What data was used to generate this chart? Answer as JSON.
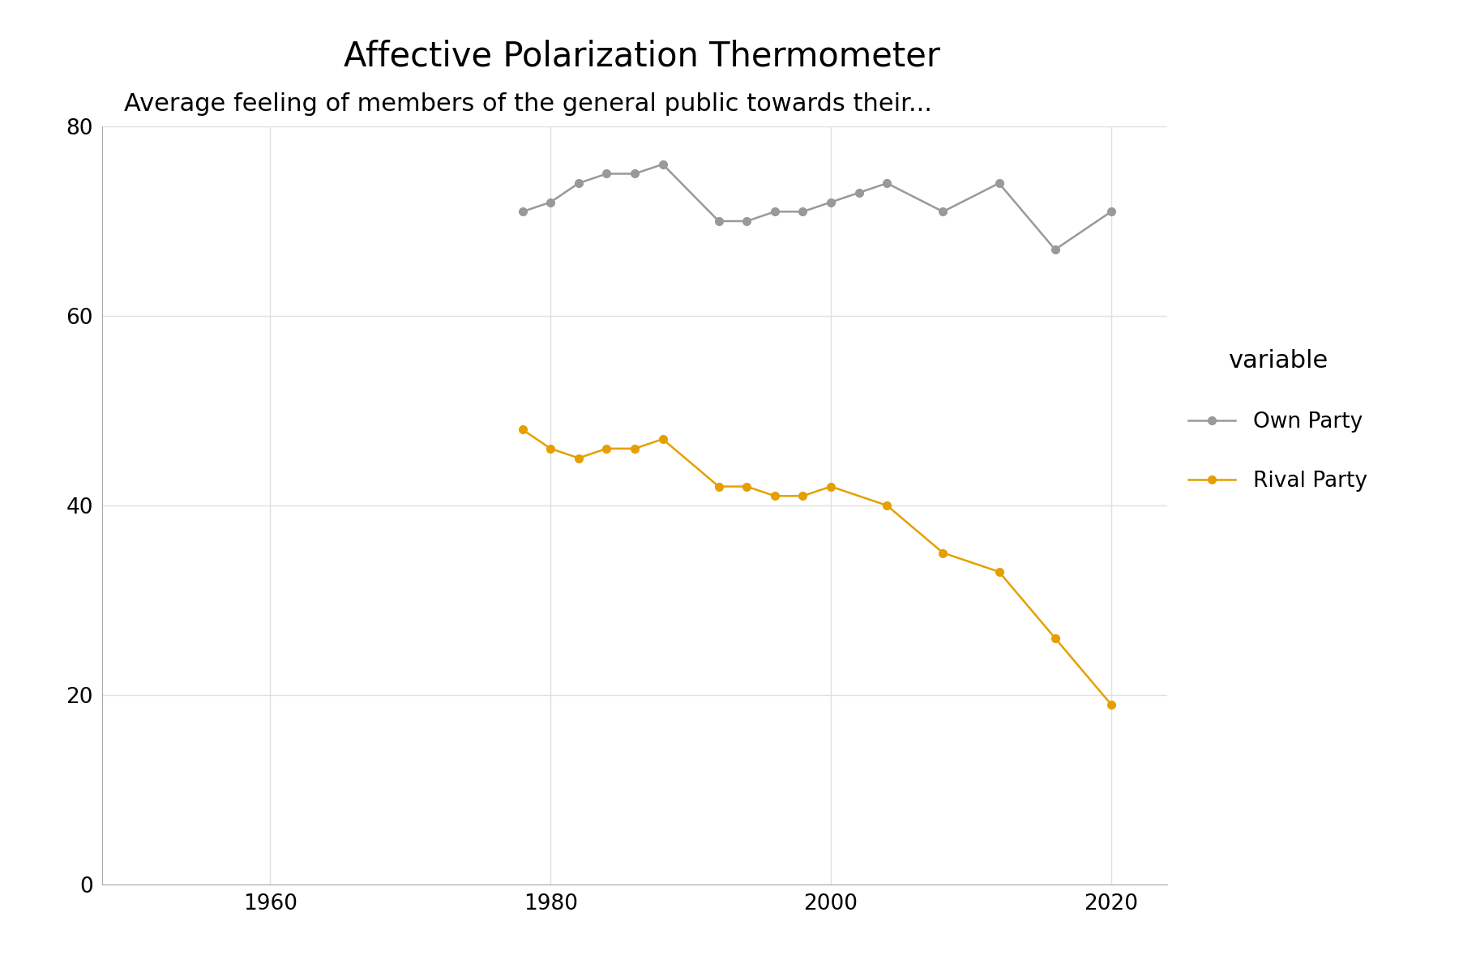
{
  "title": "Affective Polarization Thermometer",
  "subtitle": "Average feeling of members of the general public towards their...",
  "own_party_x": [
    1978,
    1980,
    1982,
    1984,
    1986,
    1988,
    1992,
    1994,
    1996,
    1998,
    2000,
    2002,
    2004,
    2008,
    2012,
    2016,
    2020
  ],
  "own_party_y": [
    71,
    72,
    74,
    75,
    75,
    76,
    70,
    70,
    71,
    71,
    72,
    73,
    74,
    71,
    74,
    67,
    71
  ],
  "rival_party_x": [
    1978,
    1980,
    1982,
    1984,
    1986,
    1988,
    1992,
    1994,
    1996,
    1998,
    2000,
    2004,
    2008,
    2012,
    2016,
    2020
  ],
  "rival_party_y": [
    48,
    46,
    45,
    46,
    46,
    47,
    42,
    42,
    41,
    41,
    42,
    40,
    35,
    33,
    26,
    19
  ],
  "own_party_color": "#999999",
  "rival_party_color": "#E5A000",
  "bg_color": "#ffffff",
  "plot_bg_color": "#ffffff",
  "xlim": [
    1948,
    2024
  ],
  "ylim": [
    0,
    80
  ],
  "yticks": [
    0,
    20,
    40,
    60,
    80
  ],
  "xticks": [
    1960,
    1980,
    2000,
    2020
  ],
  "grid_color": "#e0e0e0",
  "title_fontsize": 30,
  "subtitle_fontsize": 22,
  "tick_fontsize": 19,
  "legend_title": "variable",
  "legend_labels": [
    "Own Party",
    "Rival Party"
  ],
  "marker_size": 7,
  "line_width": 1.8
}
